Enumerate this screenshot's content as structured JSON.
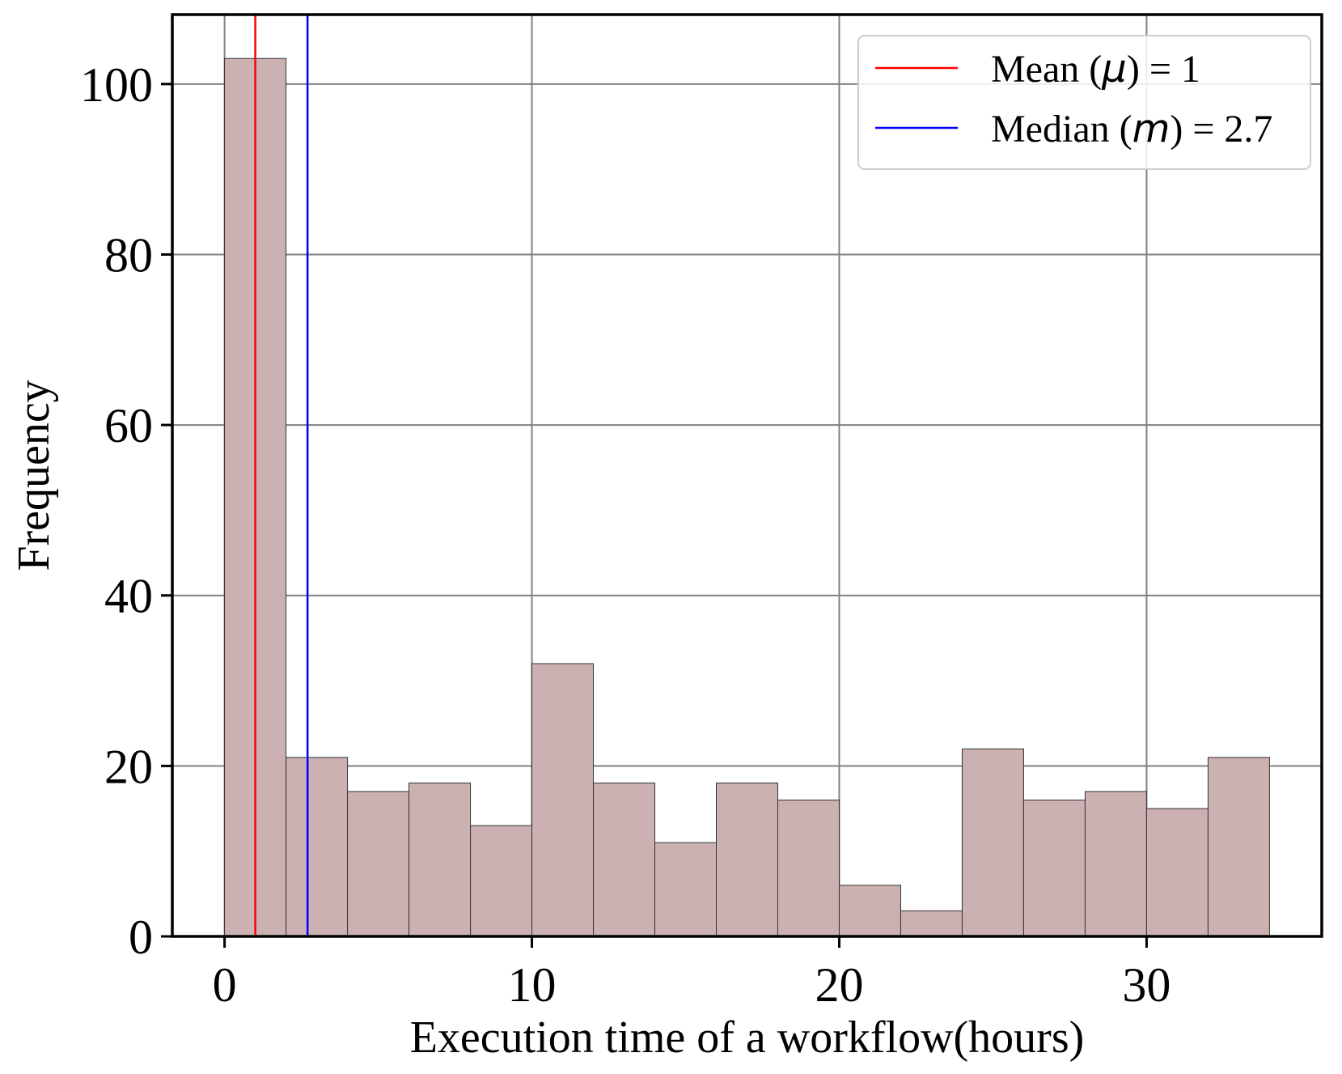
{
  "chart_data": {
    "type": "bar",
    "bin_edges": [
      0,
      2,
      4,
      6,
      8,
      10,
      12,
      14,
      16,
      18,
      20,
      22,
      24,
      26,
      28,
      30,
      32,
      34
    ],
    "values": [
      103,
      21,
      17,
      18,
      13,
      32,
      18,
      11,
      18,
      16,
      6,
      3,
      22,
      16,
      17,
      15,
      21
    ],
    "xlabel": "Execution time of a workflow(hours)",
    "ylabel": "Frequency",
    "xlim": [
      -1.7,
      35.7
    ],
    "ylim": [
      0,
      108.15
    ],
    "xticks": [
      0,
      10,
      20,
      30
    ],
    "yticks": [
      0,
      20,
      40,
      60,
      80,
      100
    ],
    "grid": true,
    "bar_color": "#cbb1b1",
    "bar_edge_color": "#333333",
    "vlines": [
      {
        "x": 1,
        "color": "#ff0000",
        "label_prefix": "Mean (",
        "symbol": "μ",
        "label_suffix": ") = 1"
      },
      {
        "x": 2.7,
        "color": "#0000ff",
        "label_prefix": "Median (",
        "symbol": "m",
        "label_suffix": ") = 2.7"
      }
    ],
    "legend": {
      "placement": "top-right"
    }
  }
}
